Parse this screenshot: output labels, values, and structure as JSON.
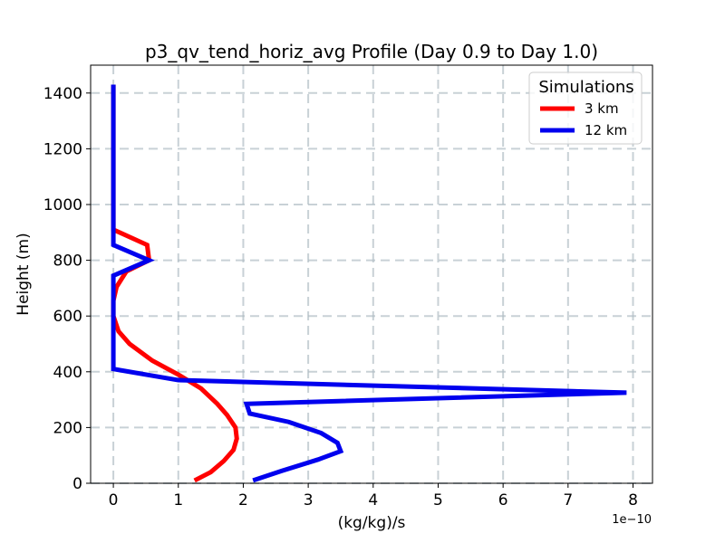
{
  "chart_data": {
    "type": "line",
    "title": "p3_qv_tend_horiz_avg Profile (Day 0.9 to Day 1.0)",
    "xlabel": "(kg/kg)/s",
    "ylabel": "Height (m)",
    "x_offset_label": "1e−10",
    "xlim": [
      -0.35,
      8.3
    ],
    "ylim": [
      0,
      1500
    ],
    "xticks": [
      0,
      1,
      2,
      3,
      4,
      5,
      6,
      7,
      8
    ],
    "xtick_labels": [
      "0",
      "1",
      "2",
      "3",
      "4",
      "5",
      "6",
      "7",
      "8"
    ],
    "yticks": [
      0,
      200,
      400,
      600,
      800,
      1000,
      1200,
      1400
    ],
    "ytick_labels": [
      "0",
      "200",
      "400",
      "600",
      "800",
      "1000",
      "1200",
      "1400"
    ],
    "grid": true,
    "legend": {
      "title": "Simulations",
      "position": "top-right"
    },
    "series": [
      {
        "name": "3 km",
        "color": "#ff0000",
        "points": [
          [
            1.25,
            10
          ],
          [
            1.5,
            40
          ],
          [
            1.7,
            80
          ],
          [
            1.85,
            120
          ],
          [
            1.9,
            160
          ],
          [
            1.88,
            200
          ],
          [
            1.75,
            245
          ],
          [
            1.6,
            285
          ],
          [
            1.35,
            340
          ],
          [
            1.0,
            390
          ],
          [
            0.6,
            440
          ],
          [
            0.25,
            500
          ],
          [
            0.08,
            545
          ],
          [
            0.0,
            600
          ],
          [
            0.0,
            655
          ],
          [
            0.05,
            705
          ],
          [
            0.2,
            760
          ],
          [
            0.55,
            800
          ],
          [
            0.52,
            855
          ],
          [
            0.0,
            910
          ],
          [
            0.0,
            1430
          ]
        ]
      },
      {
        "name": "12 km",
        "color": "#0000ee",
        "points": [
          [
            2.15,
            10
          ],
          [
            2.6,
            45
          ],
          [
            3.15,
            85
          ],
          [
            3.5,
            115
          ],
          [
            3.45,
            145
          ],
          [
            3.2,
            180
          ],
          [
            2.7,
            220
          ],
          [
            2.1,
            250
          ],
          [
            2.05,
            285
          ],
          [
            7.9,
            325
          ],
          [
            1.0,
            370
          ],
          [
            0.0,
            410
          ],
          [
            0.0,
            745
          ],
          [
            0.55,
            800
          ],
          [
            0.0,
            855
          ],
          [
            0.0,
            1430
          ]
        ]
      }
    ]
  }
}
